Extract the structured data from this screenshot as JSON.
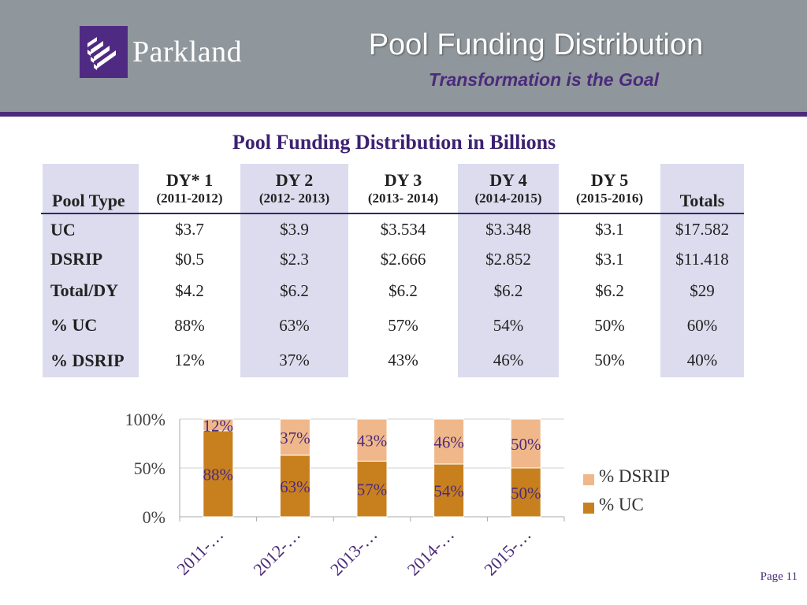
{
  "header": {
    "logo_text": "Parkland",
    "title": "Pool Funding Distribution",
    "subtitle": "Transformation is the Goal",
    "colors": {
      "band": "#8f979c",
      "accent": "#4b2a7b"
    },
    "logo_icon": "parkland-logo-icon"
  },
  "table": {
    "title": "Pool Funding Distribution in Billions",
    "pool_type_header": "Pool Type",
    "totals_header": "Totals",
    "columns": [
      {
        "label": "DY* 1",
        "years": "(2011-2012)"
      },
      {
        "label": "DY 2",
        "years": "(2012- 2013)"
      },
      {
        "label": "DY 3",
        "years": "(2013- 2014)"
      },
      {
        "label": "DY 4",
        "years": "(2014-2015)"
      },
      {
        "label": "DY 5",
        "years": "(2015-2016)"
      }
    ],
    "rows": [
      {
        "label": "UC",
        "values": [
          "$3.7",
          "$3.9",
          "$3.534",
          "$3.348",
          "$3.1"
        ],
        "total": "$17.582"
      },
      {
        "label": "DSRIP",
        "values": [
          "$0.5",
          "$2.3",
          "$2.666",
          "$2.852",
          "$3.1"
        ],
        "total": "$11.418"
      },
      {
        "label": "Total/DY",
        "values": [
          "$4.2",
          "$6.2",
          "$6.2",
          "$6.2",
          "$6.2"
        ],
        "total": "$29"
      },
      {
        "label": "% UC",
        "values": [
          "88%",
          "63%",
          "57%",
          "54%",
          "50%"
        ],
        "total": "60%"
      },
      {
        "label": "% DSRIP",
        "values": [
          "12%",
          "37%",
          "43%",
          "46%",
          "50%"
        ],
        "total": "40%"
      }
    ]
  },
  "chart_data": {
    "type": "bar",
    "stacked": true,
    "percent": true,
    "categories": [
      "2011-…",
      "2012-…",
      "2013-…",
      "2014-…",
      "2015-…"
    ],
    "series": [
      {
        "name": "% UC",
        "values": [
          88,
          63,
          57,
          54,
          50
        ],
        "labels": [
          "88%",
          "63%",
          "57%",
          "54%",
          "50%"
        ],
        "color": "#c8801e"
      },
      {
        "name": "% DSRIP",
        "values": [
          12,
          37,
          43,
          46,
          50
        ],
        "labels": [
          "12%",
          "37%",
          "43%",
          "46%",
          "50%"
        ],
        "color": "#f0b88a"
      }
    ],
    "y_ticks": [
      "0%",
      "50%",
      "100%"
    ],
    "ylim": [
      0,
      100
    ],
    "grid": true,
    "legend": "right"
  },
  "footer": {
    "page": "Page 11"
  }
}
